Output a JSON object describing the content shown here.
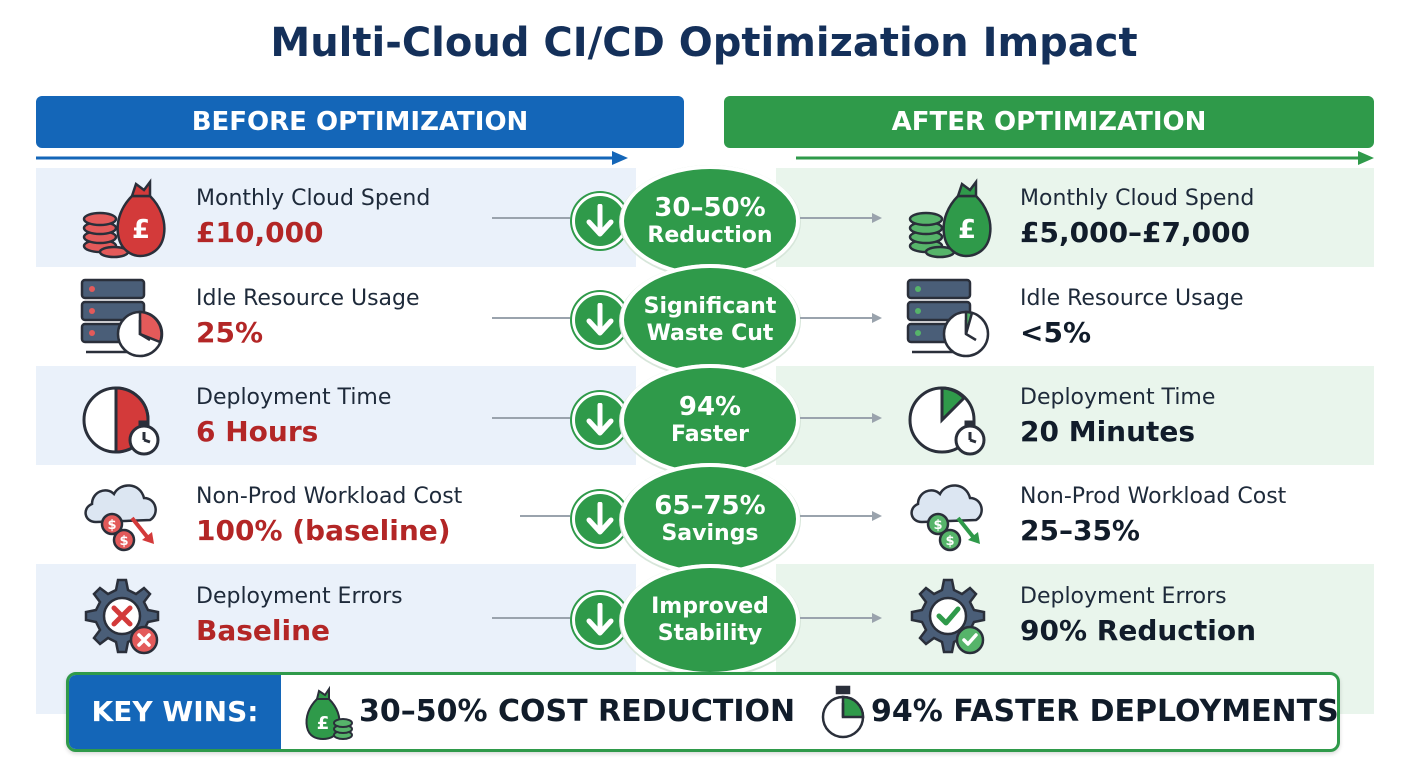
{
  "title": "Multi-Cloud CI/CD Optimization Impact",
  "headers": {
    "before": "BEFORE OPTIMIZATION",
    "after": "AFTER OPTIMIZATION"
  },
  "colors": {
    "blue": "#1466b8",
    "green": "#2f9a4a",
    "red": "#b32626",
    "navy": "#14305a"
  },
  "rows": [
    {
      "label": "Monthly Cloud Spend",
      "before_value": "£10,000",
      "after_value": "£5,000–£7,000",
      "badge_line1": "30–50%",
      "badge_line2": "Reduction",
      "icon": "money-bag-coins-icon"
    },
    {
      "label": "Idle Resource Usage",
      "before_value": "25%",
      "after_value": "<5%",
      "badge_line1": "Significant",
      "badge_line2": "Waste Cut",
      "icon": "server-clock-icon"
    },
    {
      "label": "Deployment Time",
      "before_value": "6 Hours",
      "after_value": "20 Minutes",
      "badge_line1": "94%",
      "badge_line2": "Faster",
      "icon": "stopwatch-icon"
    },
    {
      "label": "Non-Prod Workload Cost",
      "before_value": "100% (baseline)",
      "after_value": "25–35%",
      "badge_line1": "65–75%",
      "badge_line2": "Savings",
      "icon": "cloud-cost-down-icon"
    },
    {
      "label": "Deployment Errors",
      "before_value": "Baseline",
      "after_value": "90% Reduction",
      "badge_line1": "Improved",
      "badge_line2": "Stability",
      "icon": "gear-status-icon"
    }
  ],
  "key_wins": {
    "label": "KEY WINS:",
    "items": [
      "30–50% COST REDUCTION",
      "94% FASTER DEPLOYMENTS"
    ]
  }
}
